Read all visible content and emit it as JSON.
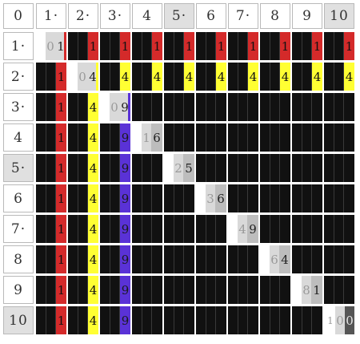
{
  "corner_label": "0",
  "col_headers": [
    "1·",
    "2·",
    "3·",
    "4",
    "5·",
    "6",
    "7·",
    "8",
    "9",
    "10"
  ],
  "row_headers": [
    "1·",
    "2·",
    "3·",
    "4",
    "5·",
    "6",
    "7·",
    "8",
    "9",
    "10"
  ],
  "highlighted_headers": {
    "cols": [
      5,
      10
    ],
    "rows": [
      5,
      10
    ]
  },
  "colors": {
    "red": "#d42a2a",
    "yellow": "#ffff33",
    "purple": "#5a32d6",
    "grey_light": "#d9d9d9",
    "grey_mid": "#bdbdbd",
    "grey_dark": "#555555",
    "cell_bg": "#111111"
  },
  "row_markers": {
    "1": {
      "digits": [
        "0",
        "1"
      ],
      "color": "red"
    },
    "2": {
      "digits": [
        "0",
        "4"
      ],
      "color": "yellow"
    },
    "3": {
      "digits": [
        "0",
        "9"
      ],
      "color": "purple"
    },
    "4": {
      "digits": [
        "1",
        "6"
      ],
      "color": null
    },
    "5": {
      "digits": [
        "2",
        "5"
      ],
      "color": null
    },
    "6": {
      "digits": [
        "3",
        "6"
      ],
      "color": null
    },
    "7": {
      "digits": [
        "4",
        "9"
      ],
      "color": null
    },
    "8": {
      "digits": [
        "6",
        "4"
      ],
      "color": null
    },
    "9": {
      "digits": [
        "8",
        "1"
      ],
      "color": null
    },
    "10": {
      "digits": [
        "1",
        "0",
        "0"
      ],
      "color": null
    }
  },
  "right_digit_by_color": {
    "red": "1",
    "yellow": "4",
    "purple": "9"
  },
  "grid": [
    [
      "sq",
      "red",
      "red",
      "red",
      "red",
      "red",
      "red",
      "red",
      "red",
      "red"
    ],
    [
      "red",
      "sq",
      "yel",
      "yel",
      "yel",
      "yel",
      "yel",
      "yel",
      "yel",
      "yel"
    ],
    [
      "red",
      "yel",
      "sq",
      "",
      "",
      "",
      "",
      "",
      "",
      ""
    ],
    [
      "red",
      "yel",
      "pur",
      "sq",
      "",
      "",
      "",
      "",
      "",
      ""
    ],
    [
      "red",
      "yel",
      "pur",
      "",
      "sq",
      "",
      "",
      "",
      "",
      ""
    ],
    [
      "red",
      "yel",
      "pur",
      "",
      "",
      "sq",
      "",
      "",
      "",
      ""
    ],
    [
      "red",
      "yel",
      "pur",
      "",
      "",
      "",
      "sq",
      "",
      "",
      ""
    ],
    [
      "red",
      "yel",
      "pur",
      "",
      "",
      "",
      "",
      "sq",
      "",
      ""
    ],
    [
      "red",
      "yel",
      "pur",
      "",
      "",
      "",
      "",
      "",
      "sq",
      ""
    ],
    [
      "red",
      "yel",
      "pur",
      "",
      "",
      "",
      "",
      "",
      "",
      "sq"
    ]
  ]
}
